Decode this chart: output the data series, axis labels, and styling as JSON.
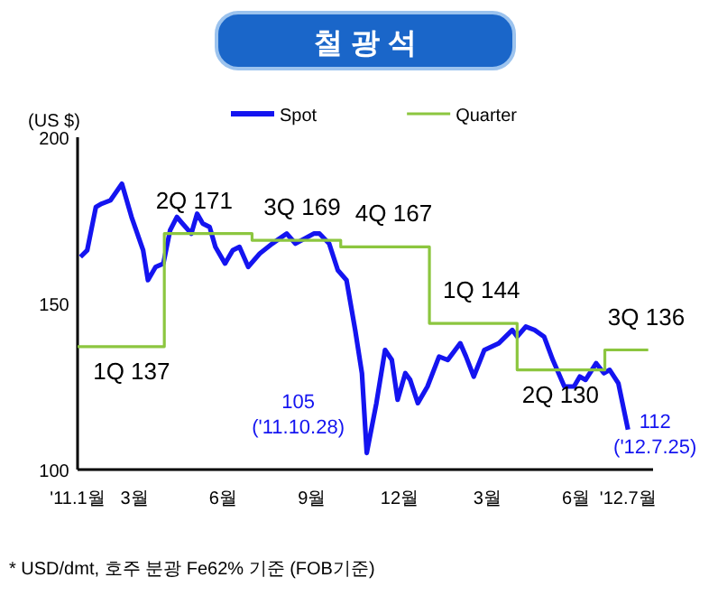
{
  "chart_data": {
    "type": "line",
    "title": "철 광 석",
    "ylabel": "(US $)",
    "ylim": [
      100,
      200
    ],
    "yticks": [
      100,
      150,
      200
    ],
    "xlim": [
      "2011-01-01",
      "2012-08-20"
    ],
    "xticks": [
      {
        "value": "2011-01-01",
        "label": "'11.1월"
      },
      {
        "value": "2011-03-01",
        "label": "3월"
      },
      {
        "value": "2011-06-01",
        "label": "6월"
      },
      {
        "value": "2011-09-01",
        "label": "9월"
      },
      {
        "value": "2011-12-01",
        "label": "12월"
      },
      {
        "value": "2012-03-01",
        "label": "3월"
      },
      {
        "value": "2012-06-01",
        "label": "6월"
      },
      {
        "value": "2012-07-25",
        "label": "'12.7월"
      }
    ],
    "legend": "top",
    "grid": false,
    "series": [
      {
        "name": "Spot",
        "color": "#1414f0",
        "x": [
          "2011-01-04",
          "2011-01-11",
          "2011-01-20",
          "2011-01-26",
          "2011-02-04",
          "2011-02-16",
          "2011-02-26",
          "2011-03-10",
          "2011-03-15",
          "2011-03-23",
          "2011-03-31",
          "2011-04-07",
          "2011-04-14",
          "2011-04-20",
          "2011-04-29",
          "2011-05-05",
          "2011-05-11",
          "2011-05-18",
          "2011-05-24",
          "2011-06-03",
          "2011-06-11",
          "2011-06-18",
          "2011-06-27",
          "2011-07-09",
          "2011-07-22",
          "2011-08-06",
          "2011-08-15",
          "2011-09-03",
          "2011-09-09",
          "2011-09-19",
          "2011-09-28",
          "2011-10-07",
          "2011-10-16",
          "2011-10-23",
          "2011-10-28",
          "2011-11-07",
          "2011-11-16",
          "2011-11-23",
          "2011-11-29",
          "2011-12-07",
          "2011-12-12",
          "2011-12-20",
          "2011-12-30",
          "2012-01-11",
          "2012-01-20",
          "2012-02-02",
          "2012-02-08",
          "2012-02-16",
          "2012-02-27",
          "2012-03-13",
          "2012-03-27",
          "2012-04-01",
          "2012-04-10",
          "2012-04-19",
          "2012-04-29",
          "2012-05-08",
          "2012-05-20",
          "2012-05-30",
          "2012-06-05",
          "2012-06-11",
          "2012-06-22",
          "2012-06-30",
          "2012-07-06",
          "2012-07-15",
          "2012-07-25"
        ],
        "values": [
          164,
          166,
          179,
          180,
          181,
          186,
          176,
          166,
          157,
          161,
          162,
          172,
          176,
          174,
          171,
          177,
          174,
          173,
          167,
          162,
          166,
          167,
          161,
          165,
          168,
          171,
          168,
          171,
          171,
          168,
          160,
          157,
          142,
          129,
          105,
          120,
          136,
          133,
          121,
          129,
          127,
          120,
          125,
          134,
          133,
          138,
          134,
          128,
          136,
          138,
          142,
          140,
          143,
          142,
          140,
          133,
          125,
          125,
          128,
          127,
          132,
          129,
          130,
          126,
          112
        ]
      },
      {
        "name": "Quarter",
        "type": "step",
        "color": "#8cc63f",
        "x": [
          "2011-01-01",
          "2011-04-01",
          "2011-07-01",
          "2011-10-01",
          "2012-01-01",
          "2012-04-01",
          "2012-07-01",
          "2012-08-15"
        ],
        "values": [
          137,
          171,
          169,
          167,
          144,
          130,
          136,
          136
        ]
      }
    ],
    "annotations": [
      {
        "text": "1Q 137",
        "x": "2011-02-26",
        "y": 137
      },
      {
        "text": "2Q 171",
        "x": "2011-05-02",
        "y": 171
      },
      {
        "text": "3Q 169",
        "x": "2011-08-22",
        "y": 169
      },
      {
        "text": "4Q 167",
        "x": "2011-11-25",
        "y": 167
      },
      {
        "text": "1Q 144",
        "x": "2012-02-24",
        "y": 144
      },
      {
        "text": "2Q 130",
        "x": "2012-05-16",
        "y": 130
      },
      {
        "text": "3Q 136",
        "x": "2012-08-13",
        "y": 136
      },
      {
        "text": "105\n('11.10.28)",
        "x": "2011-10-28",
        "y": 105
      },
      {
        "text": "112\n('12.7.25)",
        "x": "2012-07-25",
        "y": 112
      },
      "* USD/dmt, 호주 분광 Fe62% 기준 (FOB기준)"
    ]
  }
}
